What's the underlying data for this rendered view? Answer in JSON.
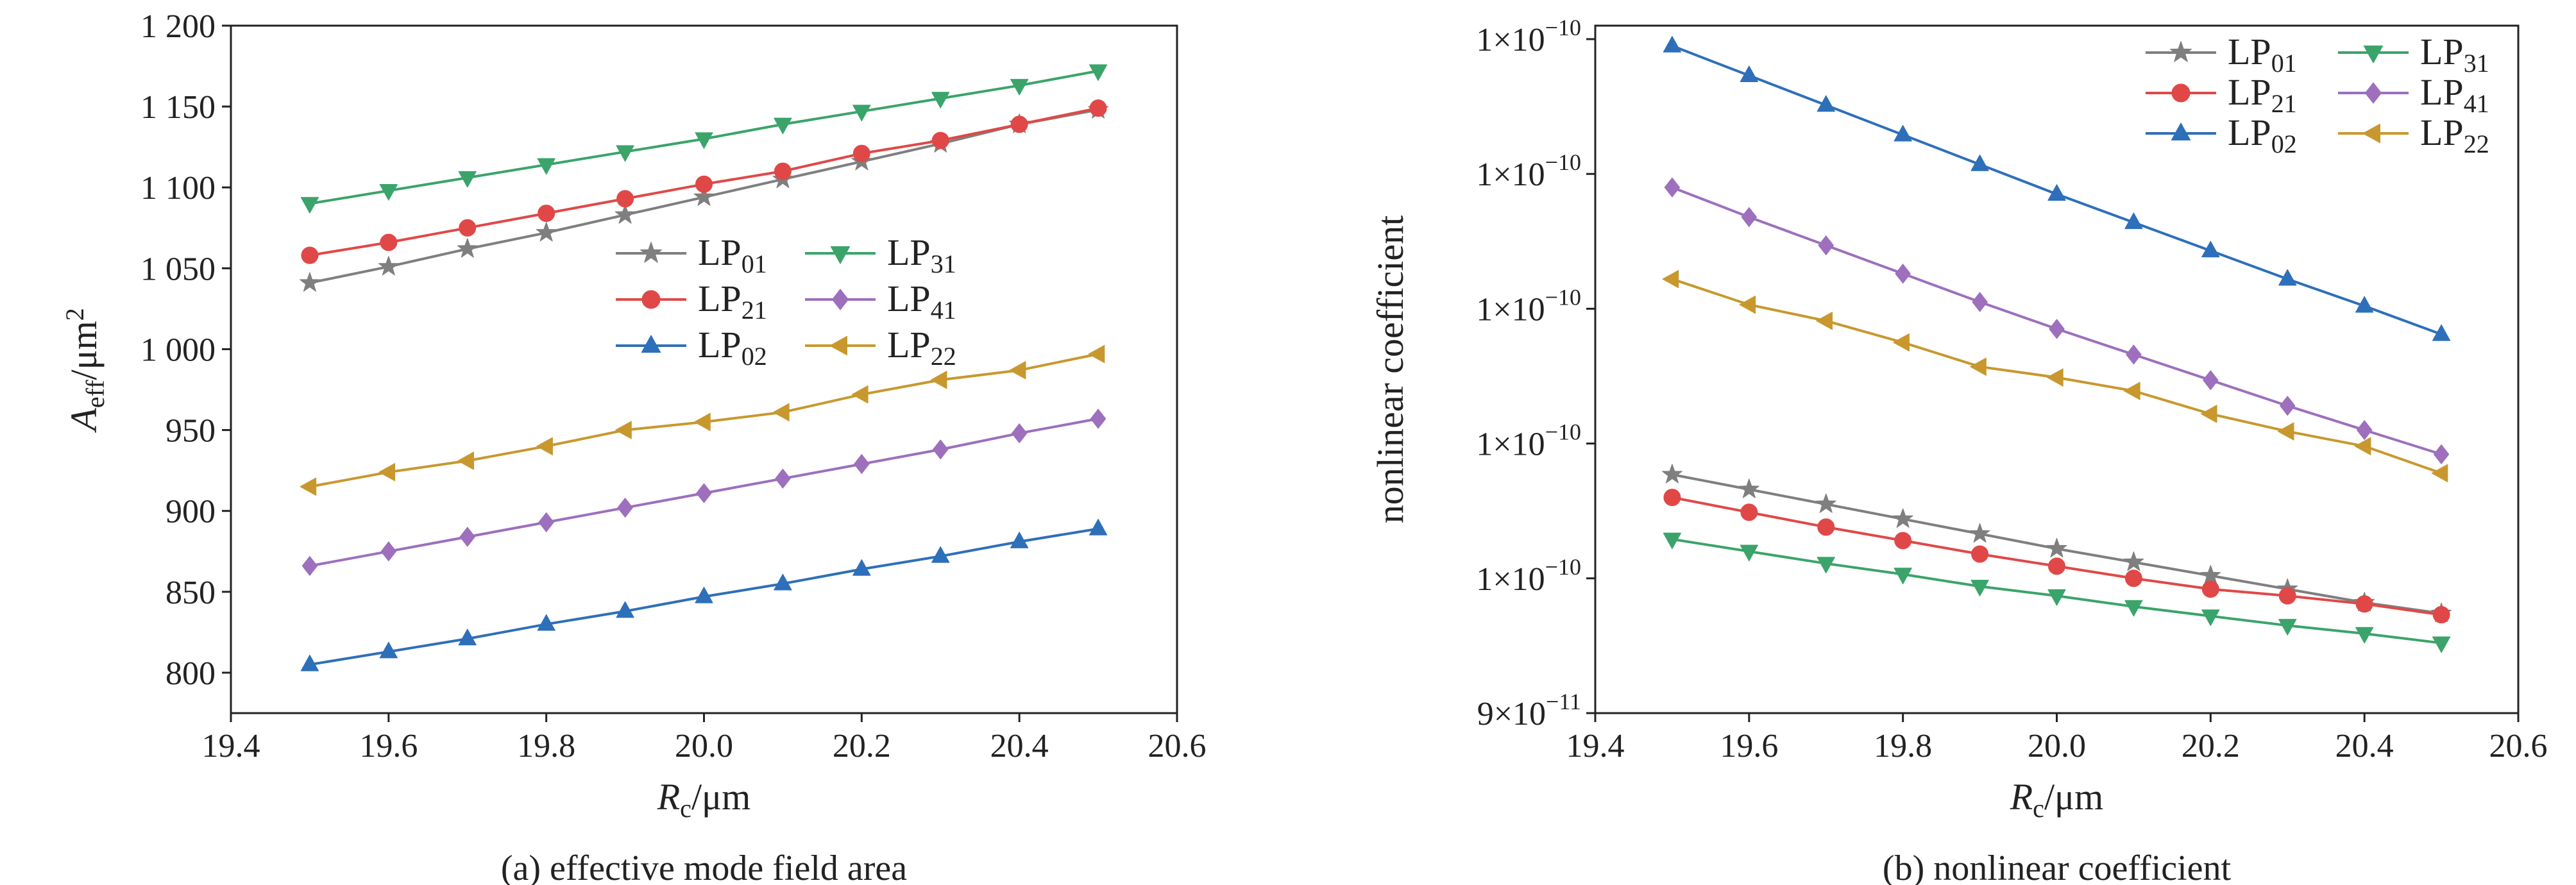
{
  "colors": {
    "LP01": "#7f7f7f",
    "LP21": "#e04848",
    "LP02": "#2e6fba",
    "LP31": "#3aa46a",
    "LP41": "#9d6fbd",
    "LP22": "#c8982e"
  },
  "chart_data": [
    {
      "type": "line",
      "caption": "(a) effective mode field area",
      "xlabel": {
        "main": "R",
        "sub": "c",
        "rest": "/μm"
      },
      "ylabel": {
        "main": "A",
        "sub": "eff",
        "rest": "/μm",
        "sup": "2"
      },
      "xlim": [
        19.4,
        20.6
      ],
      "ylim": [
        775,
        1200
      ],
      "xticks": [
        "19.4",
        "19.6",
        "19.8",
        "20.0",
        "20.2",
        "20.4",
        "20.6"
      ],
      "xtick_values": [
        19.4,
        19.6,
        19.8,
        20.0,
        20.2,
        20.4,
        20.6
      ],
      "yticks": [
        "800",
        "850",
        "900",
        "950",
        "1 000",
        "1 050",
        "1 100",
        "1 150",
        "1 200"
      ],
      "ytick_values": [
        800,
        850,
        900,
        950,
        1000,
        1050,
        1100,
        1150,
        1200
      ],
      "log_y": false,
      "legend": "center-right",
      "x": [
        19.5,
        19.6,
        19.7,
        19.8,
        19.9,
        20.0,
        20.1,
        20.2,
        20.3,
        20.4,
        20.5
      ],
      "series": [
        {
          "name": "LP",
          "sub": "01",
          "key": "LP01",
          "marker": "star",
          "values": [
            1041,
            1051,
            1062,
            1072,
            1083,
            1094,
            1105,
            1116,
            1127,
            1139,
            1148
          ]
        },
        {
          "name": "LP",
          "sub": "21",
          "key": "LP21",
          "marker": "circle",
          "values": [
            1058,
            1066,
            1075,
            1084,
            1093,
            1102,
            1110,
            1121,
            1129,
            1139,
            1149
          ]
        },
        {
          "name": "LP",
          "sub": "02",
          "key": "LP02",
          "marker": "triangle-up",
          "values": [
            805,
            813,
            821,
            830,
            838,
            847,
            855,
            864,
            872,
            881,
            889
          ]
        },
        {
          "name": "LP",
          "sub": "31",
          "key": "LP31",
          "marker": "triangle-down",
          "values": [
            1090,
            1098,
            1106,
            1114,
            1122,
            1130,
            1139,
            1147,
            1155,
            1163,
            1172
          ]
        },
        {
          "name": "LP",
          "sub": "41",
          "key": "LP41",
          "marker": "diamond",
          "values": [
            866,
            875,
            884,
            893,
            902,
            911,
            920,
            929,
            938,
            948,
            957
          ]
        },
        {
          "name": "LP",
          "sub": "22",
          "key": "LP22",
          "marker": "triangle-left",
          "values": [
            915,
            924,
            931,
            940,
            950,
            955,
            961,
            972,
            981,
            987,
            997
          ]
        }
      ]
    },
    {
      "type": "line",
      "caption": "(b) nonlinear coefficient",
      "xlabel": {
        "main": "R",
        "sub": "c",
        "rest": "/μm"
      },
      "ylabel": {
        "main": "nonlinear coefficient",
        "sub": "",
        "rest": "",
        "sup": ""
      },
      "xlim": [
        19.4,
        20.6
      ],
      "ylim": [
        0,
        5.1
      ],
      "xticks": [
        "19.4",
        "19.6",
        "19.8",
        "20.0",
        "20.2",
        "20.4",
        "20.6"
      ],
      "xtick_values": [
        19.4,
        19.6,
        19.8,
        20.0,
        20.2,
        20.4,
        20.6
      ],
      "yticks": [
        {
          "mant": "9×10",
          "exp": "−11",
          "pos": 0
        },
        {
          "mant": "1×10",
          "exp": "−10",
          "pos": 1
        },
        {
          "mant": "1×10",
          "exp": "−10",
          "pos": 2
        },
        {
          "mant": "1×10",
          "exp": "−10",
          "pos": 3
        },
        {
          "mant": "1×10",
          "exp": "−10",
          "pos": 4
        },
        {
          "mant": "1×10",
          "exp": "−10",
          "pos": 5
        }
      ],
      "log_y": true,
      "legend": "top-right",
      "x": [
        19.5,
        19.6,
        19.7,
        19.8,
        19.9,
        20.0,
        20.1,
        20.2,
        20.3,
        20.4,
        20.5
      ],
      "series": [
        {
          "name": "LP",
          "sub": "01",
          "key": "LP01",
          "marker": "star",
          "values": [
            1.77,
            1.66,
            1.55,
            1.44,
            1.33,
            1.22,
            1.12,
            1.02,
            0.92,
            0.82,
            0.74
          ]
        },
        {
          "name": "LP",
          "sub": "21",
          "key": "LP21",
          "marker": "circle",
          "values": [
            1.6,
            1.49,
            1.38,
            1.28,
            1.18,
            1.09,
            1.0,
            0.92,
            0.87,
            0.81,
            0.73
          ]
        },
        {
          "name": "LP",
          "sub": "02",
          "key": "LP02",
          "marker": "triangle-up",
          "values": [
            4.95,
            4.73,
            4.51,
            4.29,
            4.07,
            3.85,
            3.64,
            3.43,
            3.22,
            3.02,
            2.81
          ]
        },
        {
          "name": "LP",
          "sub": "31",
          "key": "LP31",
          "marker": "triangle-down",
          "values": [
            1.29,
            1.2,
            1.11,
            1.03,
            0.94,
            0.87,
            0.79,
            0.72,
            0.65,
            0.59,
            0.52
          ]
        },
        {
          "name": "LP",
          "sub": "41",
          "key": "LP41",
          "marker": "diamond",
          "values": [
            3.9,
            3.68,
            3.47,
            3.26,
            3.05,
            2.85,
            2.66,
            2.47,
            2.28,
            2.1,
            1.92
          ]
        },
        {
          "name": "LP",
          "sub": "22",
          "key": "LP22",
          "marker": "triangle-left",
          "values": [
            3.22,
            3.03,
            2.91,
            2.75,
            2.57,
            2.49,
            2.39,
            2.22,
            2.09,
            1.98,
            1.78
          ]
        }
      ]
    }
  ]
}
